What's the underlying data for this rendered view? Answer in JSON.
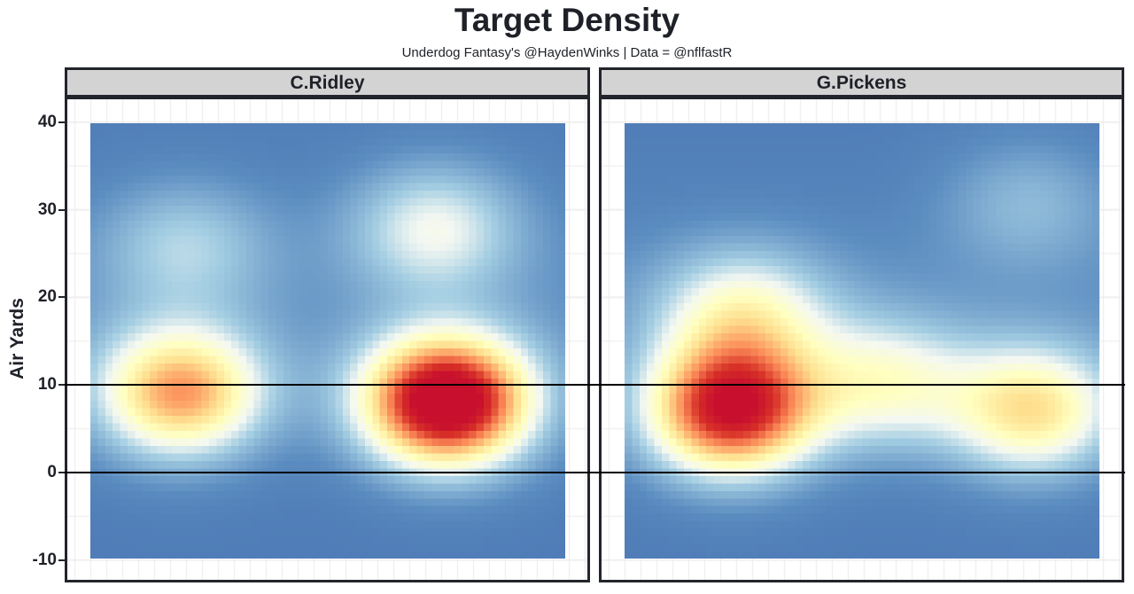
{
  "chart_data": {
    "type": "heatmap",
    "title": "Target Density",
    "subtitle": "Underdog Fantasy's @HaydenWinks | Data = @nflfastR",
    "ylabel": "Air Yards",
    "xlabel": "",
    "ylim": [
      -10,
      40
    ],
    "yticks": [
      "40",
      "30",
      "20",
      "10",
      "0",
      "-10"
    ],
    "reference_lines_y": [
      10,
      0
    ],
    "colorscale": [
      "#3a5fa5",
      "#5b8cc0",
      "#a6cfe3",
      "#f4f8f2",
      "#ffffbf",
      "#fee090",
      "#fc8d59",
      "#d73027",
      "#c8102e"
    ],
    "panels": [
      {
        "name": "C.Ridley",
        "hotspots": [
          {
            "x": -0.62,
            "y": 9,
            "density": 0.62
          },
          {
            "x": 0.5,
            "y": 8,
            "density": 1.0
          },
          {
            "x": 0.45,
            "y": 28,
            "density": 0.3
          },
          {
            "x": -0.6,
            "y": 26,
            "density": 0.2
          }
        ]
      },
      {
        "name": "G.Pickens",
        "hotspots": [
          {
            "x": -0.55,
            "y": 7,
            "density": 0.85
          },
          {
            "x": 0.72,
            "y": 7,
            "density": 0.5
          },
          {
            "x": 0.1,
            "y": 10,
            "density": 0.35
          },
          {
            "x": -0.5,
            "y": 18,
            "density": 0.35
          },
          {
            "x": 0.7,
            "y": 31,
            "density": 0.15
          }
        ]
      }
    ]
  }
}
